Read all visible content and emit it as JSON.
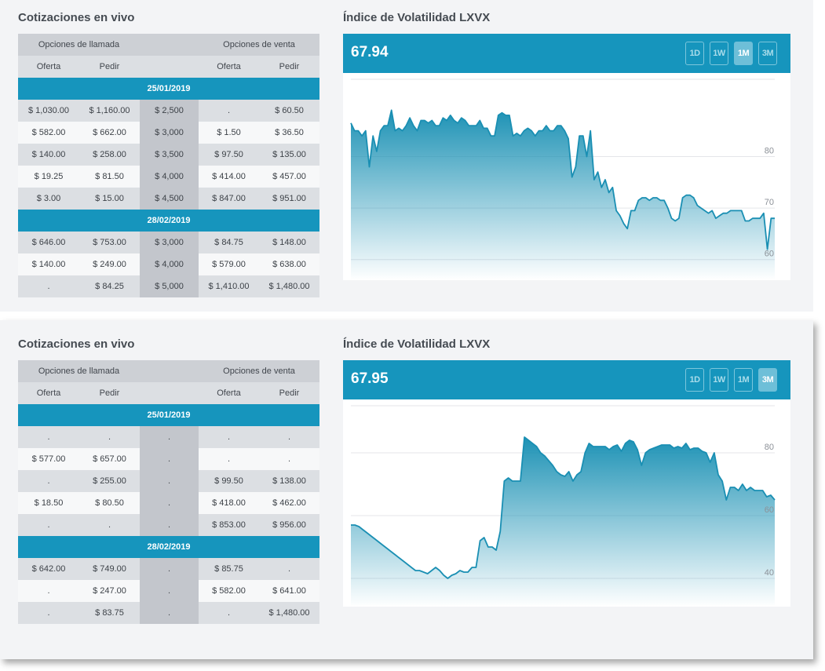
{
  "colors": {
    "accent": "#1695bd",
    "line": "#1a8fb3",
    "panel_bg": "#f3f4f6"
  },
  "headers": {
    "calls": "Opciones de llamada",
    "puts": "Opciones de venta",
    "bid": "Oferta",
    "ask": "Pedir"
  },
  "range_buttons": [
    "1D",
    "1W",
    "1M",
    "3M"
  ],
  "panels": [
    {
      "title": "Cotizaciones en vivo",
      "chart_title": "Índice de Volatilidad LXVX",
      "value": "67.94",
      "active_range": "1M",
      "groups": [
        {
          "date": "25/01/2019",
          "rows": [
            [
              "$ 1,030.00",
              "$ 1,160.00",
              "$ 2,500",
              ".",
              "$ 60.50"
            ],
            [
              "$ 582.00",
              "$ 662.00",
              "$ 3,000",
              "$ 1.50",
              "$ 36.50"
            ],
            [
              "$ 140.00",
              "$ 258.00",
              "$ 3,500",
              "$ 97.50",
              "$ 135.00"
            ],
            [
              "$ 19.25",
              "$ 81.50",
              "$ 4,000",
              "$ 414.00",
              "$ 457.00"
            ],
            [
              "$ 3.00",
              "$ 15.00",
              "$ 4,500",
              "$ 847.00",
              "$ 951.00"
            ]
          ]
        },
        {
          "date": "28/02/2019",
          "rows": [
            [
              "$ 646.00",
              "$ 753.00",
              "$ 3,000",
              "$ 84.75",
              "$ 148.00"
            ],
            [
              "$ 140.00",
              "$ 249.00",
              "$ 4,000",
              "$ 579.00",
              "$ 638.00"
            ],
            [
              ".",
              "$ 84.25",
              "$ 5,000",
              "$ 1,410.00",
              "$ 1,480.00"
            ]
          ]
        }
      ]
    },
    {
      "title": "Cotizaciones en vivo",
      "chart_title": "Índice de Volatilidad LXVX",
      "value": "67.95",
      "active_range": "3M",
      "groups": [
        {
          "date": "25/01/2019",
          "rows": [
            [
              ".",
              ".",
              ".",
              ".",
              "."
            ],
            [
              "$ 577.00",
              "$ 657.00",
              ".",
              ".",
              "."
            ],
            [
              ".",
              "$ 255.00",
              ".",
              "$ 99.50",
              "$ 138.00"
            ],
            [
              "$ 18.50",
              "$ 80.50",
              ".",
              "$ 418.00",
              "$ 462.00"
            ],
            [
              ".",
              ".",
              ".",
              "$ 853.00",
              "$ 956.00"
            ]
          ]
        },
        {
          "date": "28/02/2019",
          "rows": [
            [
              "$ 642.00",
              "$ 749.00",
              ".",
              "$ 85.75",
              "."
            ],
            [
              ".",
              "$ 247.00",
              ".",
              "$ 582.00",
              "$ 641.00"
            ],
            [
              ".",
              "$ 83.75",
              ".",
              ".",
              "$ 1,480.00"
            ]
          ]
        }
      ]
    }
  ],
  "chart_data": [
    {
      "type": "area",
      "title": "Índice de Volatilidad LXVX",
      "ylim": [
        56,
        95
      ],
      "y_ticks": [
        80,
        70,
        60
      ],
      "values": [
        86.5,
        85,
        85,
        84,
        85,
        78,
        84,
        81,
        85,
        86,
        86,
        89,
        85,
        85.5,
        85,
        86,
        87.5,
        86,
        85,
        87,
        87,
        86.5,
        87,
        86,
        86,
        87.5,
        87,
        88,
        87,
        86.5,
        87.5,
        87,
        86,
        86,
        86,
        87,
        85.5,
        85.5,
        84,
        84,
        88,
        88.5,
        88,
        88,
        84,
        84.5,
        84,
        85,
        85.5,
        85,
        84,
        85,
        85,
        86,
        85,
        85,
        86,
        86,
        85,
        83.5,
        76,
        78,
        84,
        84,
        80,
        85,
        75.5,
        77,
        74,
        75.5,
        73,
        74,
        69.5,
        68.5,
        67,
        66,
        69.5,
        69.5,
        71.5,
        72,
        72,
        71.5,
        72,
        72,
        71.5,
        71.5,
        70,
        68,
        67.5,
        68,
        72,
        72.5,
        72.5,
        72,
        70.5,
        70,
        69.5,
        69,
        69.5,
        68,
        68.5,
        69,
        69,
        69.5,
        69.5,
        69.5,
        69.5,
        67.5,
        67.5,
        68,
        68,
        68,
        69,
        62,
        68,
        68
      ]
    },
    {
      "type": "area",
      "title": "Índice de Volatilidad LXVX",
      "ylim": [
        31,
        95
      ],
      "y_ticks": [
        80,
        60,
        40
      ],
      "values": [
        57,
        57,
        56.5,
        55.5,
        54.5,
        53.5,
        52.5,
        51.5,
        50.5,
        49.5,
        48.5,
        47.5,
        46.5,
        45.5,
        44.5,
        43.5,
        42.5,
        42.5,
        42,
        41.5,
        42.5,
        43.5,
        42.5,
        41,
        40,
        41,
        41.5,
        42.5,
        42,
        42,
        43.5,
        43.5,
        52,
        53,
        50,
        50,
        49,
        55,
        71,
        72,
        71,
        71,
        71,
        85,
        84,
        83,
        82,
        80,
        79,
        77.5,
        76,
        74,
        73,
        72.5,
        74,
        71,
        73,
        74,
        80,
        83,
        82,
        82,
        82,
        82,
        81,
        82,
        82.5,
        80.5,
        83,
        84,
        83.5,
        81,
        76,
        80,
        81,
        81.5,
        82,
        82.5,
        82.5,
        82.5,
        81.5,
        82,
        81.5,
        83,
        81,
        81.5,
        81.5,
        80.5,
        80,
        77,
        80,
        73,
        71,
        65,
        69,
        69,
        68,
        70,
        68,
        69,
        68,
        68,
        68,
        66,
        66.5,
        65
      ]
    }
  ]
}
